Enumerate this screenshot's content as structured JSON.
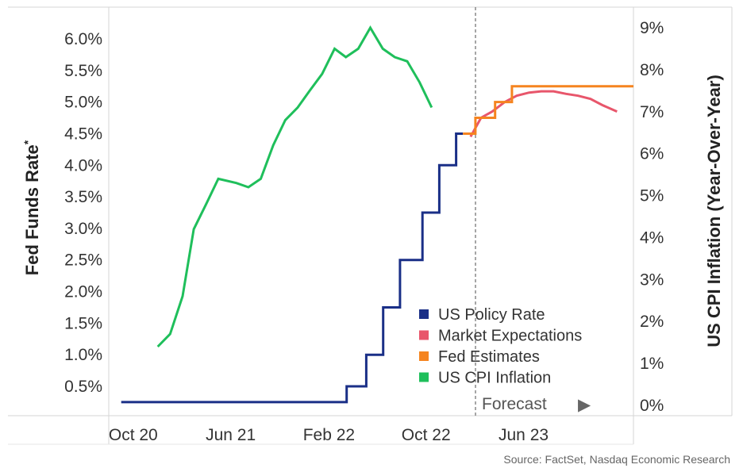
{
  "chart_data": {
    "type": "line",
    "source": "Source: FactSet, Nasdaq Economic Research",
    "forecast_label": "Forecast",
    "forecast_arrow": "▶",
    "forecast_start": "2023-01-01",
    "ylabel_left": "Fed Funds Rate",
    "ylabel_left_marker": "*",
    "ylabel_right": "US CPI Inflation (Year-Over-Year)",
    "x_ticks": [
      {
        "label": "Oct 20",
        "date": "2020-10-01"
      },
      {
        "label": "Jun 21",
        "date": "2021-06-01"
      },
      {
        "label": "Feb 22",
        "date": "2022-02-01"
      },
      {
        "label": "Oct 22",
        "date": "2022-10-01"
      },
      {
        "label": "Jun 23",
        "date": "2023-06-01"
      }
    ],
    "x_range": [
      "2020-08-01",
      "2024-03-01"
    ],
    "y_left": {
      "range": [
        0,
        6.4
      ],
      "ticks": [
        {
          "value": 0.5,
          "label": "0.5%"
        },
        {
          "value": 1.0,
          "label": "1.0%"
        },
        {
          "value": 1.5,
          "label": "1.5%"
        },
        {
          "value": 2.0,
          "label": "2.0%"
        },
        {
          "value": 2.5,
          "label": "2.5%"
        },
        {
          "value": 3.0,
          "label": "3.0%"
        },
        {
          "value": 3.5,
          "label": "3.5%"
        },
        {
          "value": 4.0,
          "label": "4.0%"
        },
        {
          "value": 4.5,
          "label": "4.5%"
        },
        {
          "value": 5.0,
          "label": "5.0%"
        },
        {
          "value": 5.5,
          "label": "5.5%"
        },
        {
          "value": 6.0,
          "label": "6.0%"
        }
      ]
    },
    "y_right": {
      "range": [
        -0.2,
        9.1
      ],
      "ticks": [
        {
          "value": 0,
          "label": "0%"
        },
        {
          "value": 1,
          "label": "1%"
        },
        {
          "value": 2,
          "label": "2%"
        },
        {
          "value": 3,
          "label": "3%"
        },
        {
          "value": 4,
          "label": "4%"
        },
        {
          "value": 5,
          "label": "5%"
        },
        {
          "value": 6,
          "label": "6%"
        },
        {
          "value": 7,
          "label": "7%"
        },
        {
          "value": 8,
          "label": "8%"
        },
        {
          "value": 9,
          "label": "9%"
        }
      ]
    },
    "series": [
      {
        "name": "US Policy Rate",
        "color": "#1a2f87",
        "axis": "left",
        "step": true,
        "points": [
          [
            "2020-09-01",
            0.25
          ],
          [
            "2022-03-17",
            0.5
          ],
          [
            "2022-05-05",
            1.0
          ],
          [
            "2022-06-16",
            1.75
          ],
          [
            "2022-07-28",
            2.5
          ],
          [
            "2022-09-22",
            3.25
          ],
          [
            "2022-11-03",
            4.0
          ],
          [
            "2022-12-15",
            4.5
          ],
          [
            "2023-01-01",
            4.5
          ]
        ]
      },
      {
        "name": "Market Expectations",
        "color": "#e8566b",
        "axis": "left",
        "step": false,
        "points": [
          [
            "2023-01-20",
            4.45
          ],
          [
            "2023-02-15",
            4.75
          ],
          [
            "2023-03-15",
            4.85
          ],
          [
            "2023-04-15",
            5.0
          ],
          [
            "2023-05-15",
            5.1
          ],
          [
            "2023-06-15",
            5.15
          ],
          [
            "2023-07-15",
            5.17
          ],
          [
            "2023-08-15",
            5.17
          ],
          [
            "2023-09-15",
            5.13
          ],
          [
            "2023-10-15",
            5.1
          ],
          [
            "2023-11-15",
            5.05
          ],
          [
            "2023-12-15",
            4.95
          ],
          [
            "2024-01-20",
            4.85
          ]
        ]
      },
      {
        "name": "Fed Estimates",
        "color": "#f5841f",
        "axis": "left",
        "step": true,
        "points": [
          [
            "2023-01-01",
            4.5
          ],
          [
            "2023-02-01",
            4.75
          ],
          [
            "2023-03-22",
            5.0
          ],
          [
            "2023-05-03",
            5.25
          ],
          [
            "2024-03-01",
            5.25
          ]
        ]
      },
      {
        "name": "US CPI Inflation",
        "color": "#1fbf5b",
        "axis": "right",
        "step": false,
        "points": [
          [
            "2020-12-01",
            1.4
          ],
          [
            "2021-01-01",
            1.7
          ],
          [
            "2021-02-01",
            2.6
          ],
          [
            "2021-03-01",
            4.2
          ],
          [
            "2021-04-01",
            4.8
          ],
          [
            "2021-05-01",
            5.4
          ],
          [
            "2021-06-15",
            5.3
          ],
          [
            "2021-07-15",
            5.2
          ],
          [
            "2021-08-15",
            5.4
          ],
          [
            "2021-09-15",
            6.2
          ],
          [
            "2021-10-15",
            6.8
          ],
          [
            "2021-11-15",
            7.1
          ],
          [
            "2021-12-15",
            7.5
          ],
          [
            "2022-01-15",
            7.9
          ],
          [
            "2022-02-15",
            8.5
          ],
          [
            "2022-03-15",
            8.3
          ],
          [
            "2022-04-15",
            8.5
          ],
          [
            "2022-05-15",
            9.0
          ],
          [
            "2022-06-15",
            8.5
          ],
          [
            "2022-07-15",
            8.3
          ],
          [
            "2022-08-15",
            8.2
          ],
          [
            "2022-09-15",
            7.7
          ],
          [
            "2022-10-15",
            7.1
          ]
        ]
      }
    ]
  }
}
